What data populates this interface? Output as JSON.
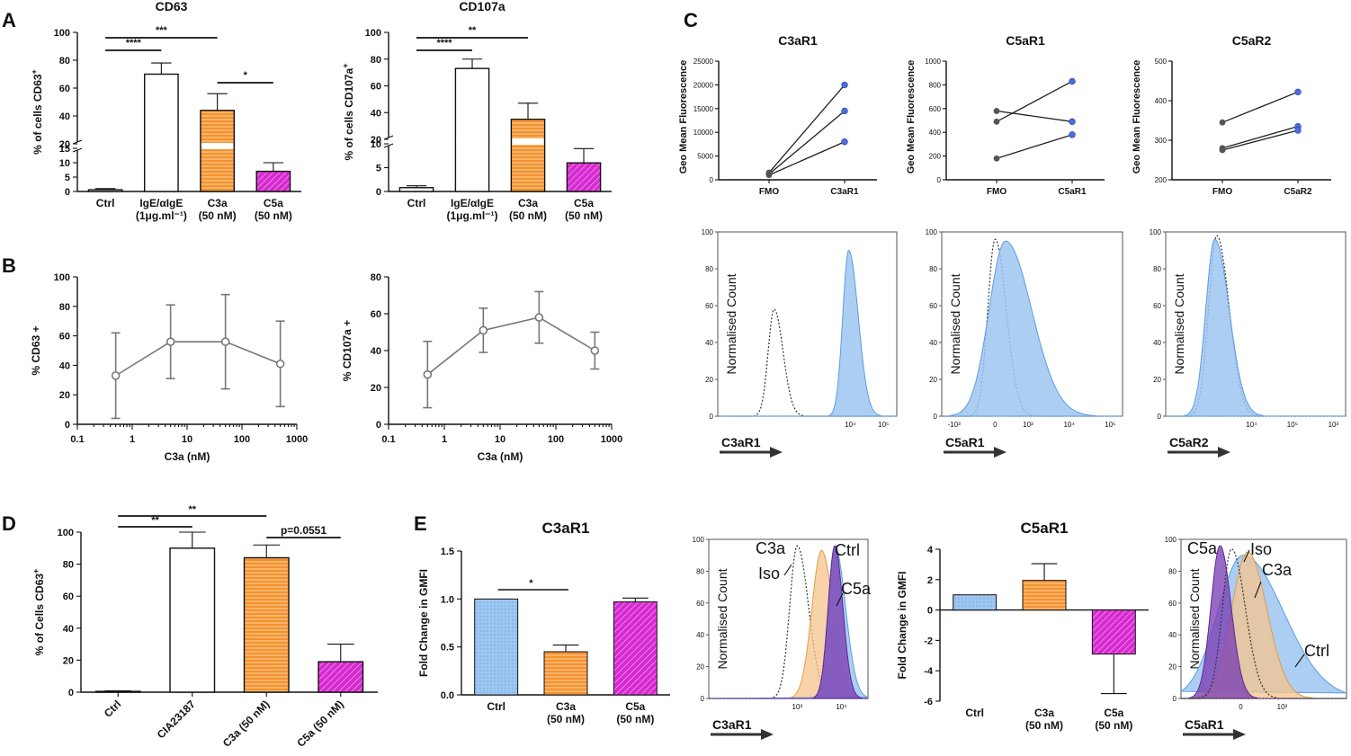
{
  "colors": {
    "white_bar": "#ffffff",
    "orange": "#f5922f",
    "magenta": "#d62ad0",
    "blue": "#9ec6f0",
    "blue_stroke": "#5d9de0",
    "orange_hist": "#f6c48c",
    "purple_hist": "#7b3fb5",
    "dot_blue": "#4a6ee0",
    "dot_grey": "#555555"
  },
  "chart_data": [
    {
      "id": "A1",
      "panel": "A",
      "type": "bar",
      "title": "CD63",
      "ylabel": "% of cells CD63+",
      "categories": [
        "Ctrl",
        "IgE/αIgE",
        "C3a",
        "C5a"
      ],
      "sublabels": [
        "",
        "(1μg.ml⁻¹)",
        "(50 nM)",
        "(50 nM)"
      ],
      "values": [
        0.6,
        70,
        44,
        7
      ],
      "errors": [
        0.4,
        8,
        12,
        3
      ],
      "fills": [
        "white",
        "white",
        "orange",
        "magenta"
      ],
      "ylim": [
        0,
        100
      ],
      "yticks": [
        0,
        5,
        10,
        15,
        20,
        40,
        60,
        80,
        100
      ],
      "axis_break": [
        15,
        20
      ],
      "significance": [
        {
          "from": 0,
          "to": 1,
          "label": "****"
        },
        {
          "from": 0,
          "to": 2,
          "label": "***"
        },
        {
          "from": 2,
          "to": 3,
          "label": "*"
        }
      ]
    },
    {
      "id": "A2",
      "panel": "A",
      "type": "bar",
      "title": "CD107a",
      "ylabel": "% of cells CD107a+",
      "categories": [
        "Ctrl",
        "IgE/αIgE",
        "C3a",
        "C5a"
      ],
      "sublabels": [
        "",
        "(1μg.ml⁻¹)",
        "(50 nM)",
        "(50 nM)"
      ],
      "values": [
        0.8,
        73,
        35,
        6
      ],
      "errors": [
        0.4,
        7,
        12,
        3
      ],
      "fills": [
        "white",
        "white",
        "orange",
        "magenta"
      ],
      "ylim": [
        0,
        100
      ],
      "yticks": [
        0,
        5,
        10,
        20,
        40,
        60,
        80,
        100
      ],
      "axis_break": [
        10,
        20
      ],
      "significance": [
        {
          "from": 0,
          "to": 1,
          "label": "****"
        },
        {
          "from": 0,
          "to": 2,
          "label": "**"
        }
      ]
    },
    {
      "id": "B1",
      "panel": "B",
      "type": "line",
      "xscale": "log",
      "xlabel": "C3a (nM)",
      "ylabel": "% CD63 +",
      "x": [
        0.5,
        5,
        50,
        500
      ],
      "y": [
        33,
        56,
        56,
        41
      ],
      "err": [
        29,
        25,
        32,
        29
      ],
      "ylim": [
        0,
        100
      ],
      "xlim": [
        0.1,
        1000
      ],
      "yticks": [
        0,
        20,
        40,
        60,
        80,
        100
      ],
      "xticks": [
        0.1,
        1,
        10,
        100,
        1000
      ],
      "xticklabels": [
        "0.1",
        "1",
        "10",
        "100",
        "1000"
      ]
    },
    {
      "id": "B2",
      "panel": "B",
      "type": "line",
      "xscale": "log",
      "xlabel": "C3a (nM)",
      "ylabel": "% CD107a +",
      "x": [
        0.5,
        5,
        50,
        500
      ],
      "y": [
        27,
        51,
        58,
        40
      ],
      "err": [
        18,
        12,
        14,
        10
      ],
      "ylim": [
        0,
        80
      ],
      "xlim": [
        0.1,
        1000
      ],
      "yticks": [
        0,
        20,
        40,
        60,
        80
      ],
      "xticks": [
        0.1,
        1,
        10,
        100,
        1000
      ],
      "xticklabels": [
        "0.1",
        "1",
        "10",
        "100",
        "1000"
      ]
    },
    {
      "id": "C1",
      "panel": "C",
      "type": "line",
      "title": "C3aR1",
      "ylabel": "Geo Mean Fluorescence",
      "categories": [
        "FMO",
        "C3aR1"
      ],
      "series": [
        {
          "values": [
            1500,
            20000
          ]
        },
        {
          "values": [
            1200,
            14500
          ]
        },
        {
          "values": [
            1000,
            8000
          ]
        }
      ],
      "ylim": [
        0,
        25000
      ],
      "yticks": [
        0,
        5000,
        10000,
        15000,
        20000,
        25000
      ]
    },
    {
      "id": "C2",
      "panel": "C",
      "type": "line",
      "title": "C5aR1",
      "ylabel": "Geo Mean Fluorescence",
      "categories": [
        "FMO",
        "C5aR1"
      ],
      "series": [
        {
          "values": [
            580,
            490
          ]
        },
        {
          "values": [
            490,
            830
          ]
        },
        {
          "values": [
            180,
            380
          ]
        }
      ],
      "ylim": [
        0,
        1000
      ],
      "yticks": [
        0,
        200,
        400,
        600,
        800,
        1000
      ]
    },
    {
      "id": "C3",
      "panel": "C",
      "type": "line",
      "title": "C5aR2",
      "ylabel": "Geo Mean Fluorescence",
      "categories": [
        "FMO",
        "C5aR2"
      ],
      "series": [
        {
          "values": [
            345,
            422
          ]
        },
        {
          "values": [
            280,
            335
          ]
        },
        {
          "values": [
            275,
            325
          ]
        }
      ],
      "ylim": [
        200,
        500
      ],
      "yticks": [
        200,
        300,
        400,
        500
      ]
    },
    {
      "id": "C4",
      "panel": "C",
      "type": "area",
      "ylabel": "Normalised Count",
      "xlabel": "C3aR1",
      "yticks": [
        0,
        20,
        40,
        60,
        80,
        100
      ],
      "series": [
        {
          "name": "FMO",
          "style": "dotted",
          "center": 1.7,
          "width": 0.18,
          "peak": 58
        },
        {
          "name": "C3aR1",
          "style": "blue",
          "center": 3.95,
          "width": 0.18,
          "peak": 90
        }
      ]
    },
    {
      "id": "C5",
      "panel": "C",
      "type": "area",
      "ylabel": "Normalised Count",
      "xlabel": "C5aR1",
      "yticks": [
        0,
        20,
        40,
        60,
        80,
        100
      ],
      "series": [
        {
          "name": "FMO",
          "style": "dotted",
          "center": 2.3,
          "width": 0.18,
          "peak": 96
        },
        {
          "name": "C5aR1",
          "style": "blue",
          "center": 2.55,
          "width": 0.4,
          "peak": 95
        }
      ]
    },
    {
      "id": "C6",
      "panel": "C",
      "type": "area",
      "ylabel": "Normalised Count",
      "xlabel": "C5aR2",
      "yticks": [
        0,
        20,
        40,
        60,
        80,
        100
      ],
      "series": [
        {
          "name": "FMO",
          "style": "dotted",
          "center": 2.25,
          "width": 0.2,
          "peak": 98
        },
        {
          "name": "C5aR2",
          "style": "blue",
          "center": 2.2,
          "width": 0.22,
          "peak": 96
        }
      ]
    },
    {
      "id": "D",
      "panel": "D",
      "type": "bar",
      "ylabel": "% of Cells CD63+",
      "categories": [
        "Ctrl",
        "CIA23187",
        "C3a (50 nM)",
        "C5a (50 nM)"
      ],
      "values": [
        0.5,
        90,
        84,
        19
      ],
      "errors": [
        0.3,
        10,
        8,
        11
      ],
      "fills": [
        "white",
        "white",
        "orange",
        "magenta"
      ],
      "ylim": [
        0,
        100
      ],
      "yticks": [
        0,
        20,
        40,
        60,
        80,
        100
      ],
      "significance": [
        {
          "from": 0,
          "to": 1,
          "label": "**"
        },
        {
          "from": 0,
          "to": 2,
          "label": "**"
        },
        {
          "from": 2,
          "to": 3,
          "label": "p=0.0551"
        }
      ]
    },
    {
      "id": "E1",
      "panel": "E",
      "type": "bar",
      "title": "C3aR1",
      "ylabel": "Fold Change in GMFI",
      "categories": [
        "Ctrl",
        "C3a",
        "C5a"
      ],
      "sublabels": [
        "",
        "(50 nM)",
        "(50 nM)"
      ],
      "values": [
        1.0,
        0.45,
        0.97
      ],
      "errors": [
        0,
        0.07,
        0.04
      ],
      "fills": [
        "blue",
        "orange",
        "magenta"
      ],
      "ylim": [
        0,
        1.5
      ],
      "yticks": [
        0,
        0.5,
        1.0,
        1.5
      ],
      "yticklabels": [
        "0.0",
        "0.5",
        "1.0",
        "1.5"
      ],
      "significance": [
        {
          "from": 0,
          "to": 1,
          "label": "*"
        }
      ]
    },
    {
      "id": "E2",
      "panel": "E",
      "type": "area",
      "ylabel": "Normalised Count",
      "xlabel": "C3aR1",
      "annotations": [
        "C3a",
        "Ctrl",
        "Iso",
        "C5a"
      ],
      "series": [
        {
          "name": "Iso",
          "style": "dotted",
          "center": 3.0,
          "width": 0.17,
          "peak": 96
        },
        {
          "name": "C3a",
          "style": "orange",
          "center": 3.55,
          "width": 0.22,
          "peak": 93
        },
        {
          "name": "Ctrl",
          "style": "blue",
          "center": 3.85,
          "width": 0.15,
          "peak": 96
        },
        {
          "name": "C5a",
          "style": "purple",
          "center": 3.85,
          "width": 0.15,
          "peak": 96
        }
      ]
    },
    {
      "id": "E3",
      "panel": "E",
      "type": "bar",
      "title": "C5aR1",
      "ylabel": "Fold Change in GMFI",
      "categories": [
        "Ctrl",
        "C3a",
        "C5a"
      ],
      "sublabels": [
        "",
        "(50 nM)",
        "(50 nM)"
      ],
      "values": [
        1.0,
        1.95,
        -2.9
      ],
      "errors": [
        0,
        1.1,
        2.6
      ],
      "fills": [
        "blue",
        "orange",
        "magenta"
      ],
      "ylim": [
        -6,
        4
      ],
      "yticks": [
        -6,
        -4,
        -2,
        0,
        2,
        4
      ],
      "yticklabels": [
        "-6",
        "-4",
        "-2",
        "0",
        "2",
        "4"
      ]
    },
    {
      "id": "E4",
      "panel": "E",
      "type": "area",
      "ylabel": "Normalised Count",
      "xlabel": "C5aR1",
      "annotations": [
        "C5a",
        "Iso",
        "C3a",
        "Ctrl"
      ],
      "series": [
        {
          "name": "Ctrl",
          "style": "blue",
          "center": 2.35,
          "width": 0.55,
          "peak": 90
        },
        {
          "name": "C3a",
          "style": "orange",
          "center": 2.45,
          "width": 0.35,
          "peak": 92
        },
        {
          "name": "C5a",
          "style": "purple",
          "center": 1.85,
          "width": 0.2,
          "peak": 96
        },
        {
          "name": "Iso",
          "style": "dotted",
          "center": 2.1,
          "width": 0.2,
          "peak": 94
        }
      ]
    }
  ],
  "panel_letters": [
    "A",
    "B",
    "C",
    "D",
    "E"
  ],
  "flow_ticks": [
    "10⁴",
    "10⁵",
    "-10³",
    "0",
    "10³",
    "10⁴",
    "10⁵",
    "-10³",
    "0",
    "10³",
    "10⁴",
    "10⁵",
    "10³",
    "10⁴",
    "0",
    "10³"
  ]
}
